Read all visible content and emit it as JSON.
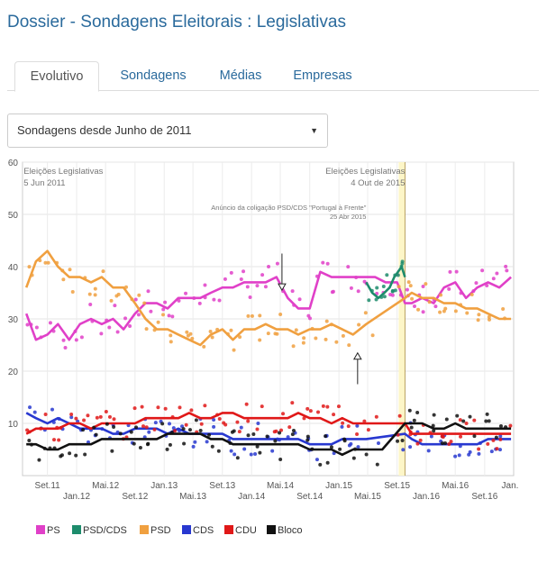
{
  "page": {
    "title": "Dossier - Sondagens Eleitorais : Legislativas"
  },
  "tabs": [
    {
      "label": "Evolutivo",
      "active": true
    },
    {
      "label": "Sondagens",
      "active": false
    },
    {
      "label": "Médias",
      "active": false
    },
    {
      "label": "Empresas",
      "active": false
    }
  ],
  "filter": {
    "selected": "Sondagens desde Junho de 2011",
    "caret": "▼"
  },
  "chart_data": {
    "type": "line",
    "ylim": [
      0,
      60
    ],
    "yticks": [
      10,
      20,
      30,
      40,
      50,
      60
    ],
    "xlim": [
      "2011-05-20",
      "2016-12-31"
    ],
    "xticks": [
      {
        "date": "2011-09-01",
        "label": "Set.11",
        "row": 1
      },
      {
        "date": "2012-01-01",
        "label": "Jan.12",
        "row": 2
      },
      {
        "date": "2012-05-01",
        "label": "Mai.12",
        "row": 1
      },
      {
        "date": "2012-09-01",
        "label": "Set.12",
        "row": 2
      },
      {
        "date": "2013-01-01",
        "label": "Jan.13",
        "row": 1
      },
      {
        "date": "2013-05-01",
        "label": "Mai.13",
        "row": 2
      },
      {
        "date": "2013-09-01",
        "label": "Set.13",
        "row": 1
      },
      {
        "date": "2014-01-01",
        "label": "Jan.14",
        "row": 2
      },
      {
        "date": "2014-05-01",
        "label": "Mai.14",
        "row": 1
      },
      {
        "date": "2014-09-01",
        "label": "Set.14",
        "row": 2
      },
      {
        "date": "2015-01-01",
        "label": "Jan.15",
        "row": 1
      },
      {
        "date": "2015-05-01",
        "label": "Mai.15",
        "row": 2
      },
      {
        "date": "2015-09-01",
        "label": "Set.15",
        "row": 1
      },
      {
        "date": "2016-01-01",
        "label": "Jan.16",
        "row": 2
      },
      {
        "date": "2016-05-01",
        "label": "Mai.16",
        "row": 1
      },
      {
        "date": "2016-09-01",
        "label": "Set.16",
        "row": 2
      },
      {
        "date": "2017-01-01",
        "label": "Jan.",
        "row": 1
      }
    ],
    "grid": true,
    "annotations": [
      {
        "date": "2011-06-05",
        "line1": "Eleições Legislativas",
        "line2": "5 Jun 2011",
        "anchor": "start"
      },
      {
        "date": "2015-10-04",
        "line1": "Eleições Legislativas",
        "line2": "4 Out de 2015",
        "anchor": "end"
      },
      {
        "date": "2015-04-25",
        "line1": "Anúncio da coligação PSD/CDS \"Portugal à Frente\"",
        "line2": "25 Abr 2015",
        "anchor": "end",
        "small": true
      }
    ],
    "markers": [
      {
        "date": "2014-05-08",
        "from": 42.5,
        "to": 35.5
      },
      {
        "date": "2015-03-20",
        "from": 17.5,
        "to": 23.5
      }
    ],
    "legend_position": "bottom-left",
    "series": [
      {
        "name": "PS",
        "color": "#e040c8",
        "x": [
          "2011-06-05",
          "2011-07-15",
          "2011-09-01",
          "2011-10-15",
          "2011-12-01",
          "2012-01-15",
          "2012-03-01",
          "2012-04-15",
          "2012-06-01",
          "2012-07-15",
          "2012-09-01",
          "2012-10-15",
          "2012-12-01",
          "2013-01-15",
          "2013-03-01",
          "2013-04-15",
          "2013-06-01",
          "2013-07-15",
          "2013-09-01",
          "2013-10-15",
          "2013-12-01",
          "2014-01-15",
          "2014-03-01",
          "2014-04-15",
          "2014-06-01",
          "2014-07-15",
          "2014-09-01",
          "2014-10-15",
          "2014-12-01",
          "2015-01-15",
          "2015-03-01",
          "2015-04-15",
          "2015-06-01",
          "2015-07-15",
          "2015-09-01",
          "2015-10-04",
          "2015-11-01",
          "2015-12-15",
          "2016-02-01",
          "2016-03-15",
          "2016-05-01",
          "2016-06-15",
          "2016-08-01",
          "2016-09-15",
          "2016-11-01",
          "2016-12-20"
        ],
        "y": [
          31,
          26,
          27,
          29,
          26,
          29,
          30,
          29,
          30,
          28,
          31,
          33,
          33,
          32,
          34,
          34,
          34,
          35,
          36,
          36,
          37,
          37,
          37,
          38,
          34,
          32,
          32,
          39,
          38,
          38,
          38,
          38,
          38,
          37,
          37,
          33,
          33,
          34,
          33,
          36,
          37,
          34,
          36,
          37,
          36,
          38
        ]
      },
      {
        "name": "PSD/CDS",
        "color": "#1d8c6c",
        "x": [
          "2015-04-25",
          "2015-05-20",
          "2015-06-15",
          "2015-07-10",
          "2015-08-01",
          "2015-08-20",
          "2015-09-05",
          "2015-09-20",
          "2015-10-04"
        ],
        "y": [
          37,
          35,
          34,
          35,
          36,
          38,
          39,
          40,
          38
        ]
      },
      {
        "name": "PSD",
        "color": "#f0a040",
        "x": [
          "2011-06-05",
          "2011-07-15",
          "2011-09-01",
          "2011-10-15",
          "2011-12-01",
          "2012-01-15",
          "2012-03-01",
          "2012-04-15",
          "2012-06-01",
          "2012-07-15",
          "2012-09-01",
          "2012-10-15",
          "2012-12-01",
          "2013-01-15",
          "2013-03-01",
          "2013-04-15",
          "2013-06-01",
          "2013-07-15",
          "2013-09-01",
          "2013-10-15",
          "2013-12-01",
          "2014-01-15",
          "2014-03-01",
          "2014-04-15",
          "2014-06-01",
          "2014-07-15",
          "2014-09-01",
          "2014-10-15",
          "2014-12-01",
          "2015-01-15",
          "2015-03-01",
          "2015-04-25",
          "2015-10-04",
          "2015-11-01",
          "2015-12-15",
          "2016-02-01",
          "2016-03-15",
          "2016-05-01",
          "2016-06-15",
          "2016-08-01",
          "2016-09-15",
          "2016-11-01",
          "2016-12-20"
        ],
        "y": [
          36,
          41,
          43,
          40,
          38,
          38,
          37,
          38,
          36,
          36,
          33,
          30,
          28,
          28,
          27,
          26,
          25,
          27,
          28,
          26,
          28,
          28,
          29,
          28,
          28,
          27,
          28,
          28,
          29,
          28,
          27,
          29,
          34,
          35,
          34,
          34,
          33,
          33,
          32,
          32,
          31,
          30,
          30
        ]
      },
      {
        "name": "CDS",
        "color": "#2838d0",
        "x": [
          "2011-06-05",
          "2011-07-15",
          "2011-09-01",
          "2011-10-15",
          "2011-12-01",
          "2012-01-15",
          "2012-03-01",
          "2012-04-15",
          "2012-06-01",
          "2012-07-15",
          "2012-09-01",
          "2012-10-15",
          "2012-12-01",
          "2013-01-15",
          "2013-03-01",
          "2013-04-15",
          "2013-06-01",
          "2013-07-15",
          "2013-09-01",
          "2013-10-15",
          "2013-12-01",
          "2014-01-15",
          "2014-03-01",
          "2014-04-15",
          "2014-06-01",
          "2014-07-15",
          "2014-09-01",
          "2014-10-15",
          "2014-12-01",
          "2015-01-15",
          "2015-03-01",
          "2015-04-25",
          "2015-10-04",
          "2015-11-01",
          "2015-12-15",
          "2016-02-01",
          "2016-03-15",
          "2016-05-01",
          "2016-06-15",
          "2016-08-01",
          "2016-09-15",
          "2016-11-01",
          "2016-12-20"
        ],
        "y": [
          12,
          11,
          10,
          11,
          10,
          9,
          9,
          9,
          8,
          8,
          9,
          9,
          9,
          8,
          9,
          8,
          8,
          8,
          8,
          7,
          7,
          7,
          7,
          7,
          7,
          7,
          6,
          6,
          6,
          7,
          7,
          7,
          8,
          7,
          6,
          6,
          6,
          6,
          6,
          6,
          7,
          7,
          7
        ]
      },
      {
        "name": "CDU",
        "color": "#e01818",
        "x": [
          "2011-06-05",
          "2011-07-15",
          "2011-09-01",
          "2011-10-15",
          "2011-12-01",
          "2012-01-15",
          "2012-03-01",
          "2012-04-15",
          "2012-06-01",
          "2012-07-15",
          "2012-09-01",
          "2012-10-15",
          "2012-12-01",
          "2013-01-15",
          "2013-03-01",
          "2013-04-15",
          "2013-06-01",
          "2013-07-15",
          "2013-09-01",
          "2013-10-15",
          "2013-12-01",
          "2014-01-15",
          "2014-03-01",
          "2014-04-15",
          "2014-06-01",
          "2014-07-15",
          "2014-09-01",
          "2014-10-15",
          "2014-12-01",
          "2015-01-15",
          "2015-03-01",
          "2015-04-25",
          "2015-07-01",
          "2015-10-04",
          "2015-11-01",
          "2015-12-15",
          "2016-02-01",
          "2016-03-15",
          "2016-05-01",
          "2016-06-15",
          "2016-08-01",
          "2016-09-15",
          "2016-11-01",
          "2016-12-20"
        ],
        "y": [
          8,
          9,
          9,
          9,
          10,
          10,
          9,
          10,
          10,
          10,
          10,
          11,
          11,
          11,
          11,
          12,
          11,
          11,
          12,
          12,
          11,
          11,
          11,
          11,
          11,
          12,
          11,
          11,
          10,
          11,
          10,
          10,
          10,
          10,
          8,
          8,
          8,
          8,
          8,
          8,
          8,
          8,
          8,
          8
        ]
      },
      {
        "name": "Bloco",
        "color": "#111111",
        "x": [
          "2011-06-05",
          "2011-07-15",
          "2011-09-01",
          "2011-10-15",
          "2011-12-01",
          "2012-01-15",
          "2012-03-01",
          "2012-04-15",
          "2012-06-01",
          "2012-07-15",
          "2012-09-01",
          "2012-10-15",
          "2012-12-01",
          "2013-01-15",
          "2013-03-01",
          "2013-04-15",
          "2013-06-01",
          "2013-07-15",
          "2013-09-01",
          "2013-10-15",
          "2013-12-01",
          "2014-01-15",
          "2014-03-01",
          "2014-04-15",
          "2014-06-01",
          "2014-07-15",
          "2014-09-01",
          "2014-10-15",
          "2014-12-01",
          "2015-01-15",
          "2015-03-01",
          "2015-04-25",
          "2015-07-01",
          "2015-10-04",
          "2015-11-01",
          "2015-12-15",
          "2016-02-01",
          "2016-03-15",
          "2016-05-01",
          "2016-06-15",
          "2016-08-01",
          "2016-09-15",
          "2016-11-01",
          "2016-12-20"
        ],
        "y": [
          6,
          6,
          5,
          5,
          6,
          6,
          6,
          7,
          7,
          7,
          7,
          7,
          7,
          8,
          8,
          8,
          8,
          7,
          7,
          6,
          6,
          6,
          6,
          6,
          6,
          6,
          5,
          5,
          5,
          4,
          5,
          5,
          5,
          10,
          10,
          10,
          9,
          9,
          10,
          9,
          9,
          9,
          9,
          9
        ]
      }
    ]
  }
}
